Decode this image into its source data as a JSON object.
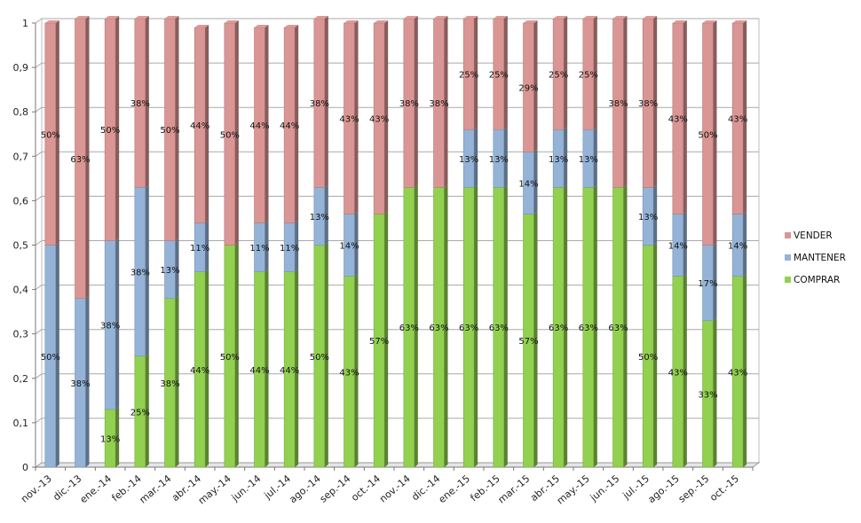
{
  "chart_data": {
    "type": "bar",
    "stacked": true,
    "title": "",
    "xlabel": "",
    "ylabel": "",
    "ylim": [
      0,
      1
    ],
    "y_ticks": [
      "0",
      "0,1",
      "0,2",
      "0,3",
      "0,4",
      "0,5",
      "0,6",
      "0,7",
      "0,8",
      "0,9",
      "1"
    ],
    "grid": true,
    "legend_position": "right",
    "categories": [
      "nov.-13",
      "dic.-13",
      "ene.-14",
      "feb.-14",
      "mar.-14",
      "abr.-14",
      "may.-14",
      "jun.-14",
      "jul.-14",
      "ago.-14",
      "sep.-14",
      "oct.-14",
      "nov.-14",
      "dic.-14",
      "ene.-15",
      "feb.-15",
      "mar.-15",
      "abr.-15",
      "may.-15",
      "jun.-15",
      "jul.-15",
      "ago.-15",
      "sep.-15",
      "oct.-15"
    ],
    "series": [
      {
        "name": "COMPRAR",
        "color": "#92d050",
        "values": [
          0,
          0,
          0.13,
          0.25,
          0.38,
          0.44,
          0.5,
          0.44,
          0.44,
          0.5,
          0.43,
          0.57,
          0.63,
          0.63,
          0.63,
          0.63,
          0.57,
          0.63,
          0.63,
          0.63,
          0.5,
          0.43,
          0.33,
          0.43
        ],
        "labels": [
          "",
          "",
          "13%",
          "25%",
          "38%",
          "44%",
          "50%",
          "44%",
          "44%",
          "50%",
          "43%",
          "57%",
          "63%",
          "63%",
          "63%",
          "63%",
          "57%",
          "63%",
          "63%",
          "63%",
          "50%",
          "43%",
          "33%",
          "43%"
        ]
      },
      {
        "name": "MANTENER",
        "color": "#95b3d7",
        "values": [
          0.5,
          0.38,
          0.38,
          0.38,
          0.13,
          0.11,
          0,
          0.11,
          0.11,
          0.13,
          0.14,
          0,
          0,
          0,
          0.13,
          0.13,
          0.14,
          0.13,
          0.13,
          0,
          0.13,
          0.14,
          0.17,
          0.14
        ],
        "labels": [
          "50%",
          "38%",
          "38%",
          "38%",
          "13%",
          "11%",
          "",
          "11%",
          "11%",
          "13%",
          "14%",
          "",
          "",
          "",
          "13%",
          "13%",
          "14%",
          "13%",
          "13%",
          "",
          "13%",
          "14%",
          "17%",
          "14%"
        ]
      },
      {
        "name": "VENDER",
        "color": "#da9694",
        "values": [
          0.5,
          0.63,
          0.5,
          0.38,
          0.5,
          0.44,
          0.5,
          0.44,
          0.44,
          0.38,
          0.43,
          0.43,
          0.38,
          0.38,
          0.25,
          0.25,
          0.29,
          0.25,
          0.25,
          0.38,
          0.38,
          0.43,
          0.5,
          0.43
        ],
        "labels": [
          "50%",
          "63%",
          "50%",
          "38%",
          "50%",
          "44%",
          "50%",
          "44%",
          "44%",
          "38%",
          "43%",
          "43%",
          "38%",
          "38%",
          "25%",
          "25%",
          "29%",
          "25%",
          "25%",
          "38%",
          "38%",
          "43%",
          "50%",
          "43%"
        ]
      }
    ],
    "legend": [
      "VENDER",
      "MANTENER",
      "COMPRAR"
    ]
  }
}
